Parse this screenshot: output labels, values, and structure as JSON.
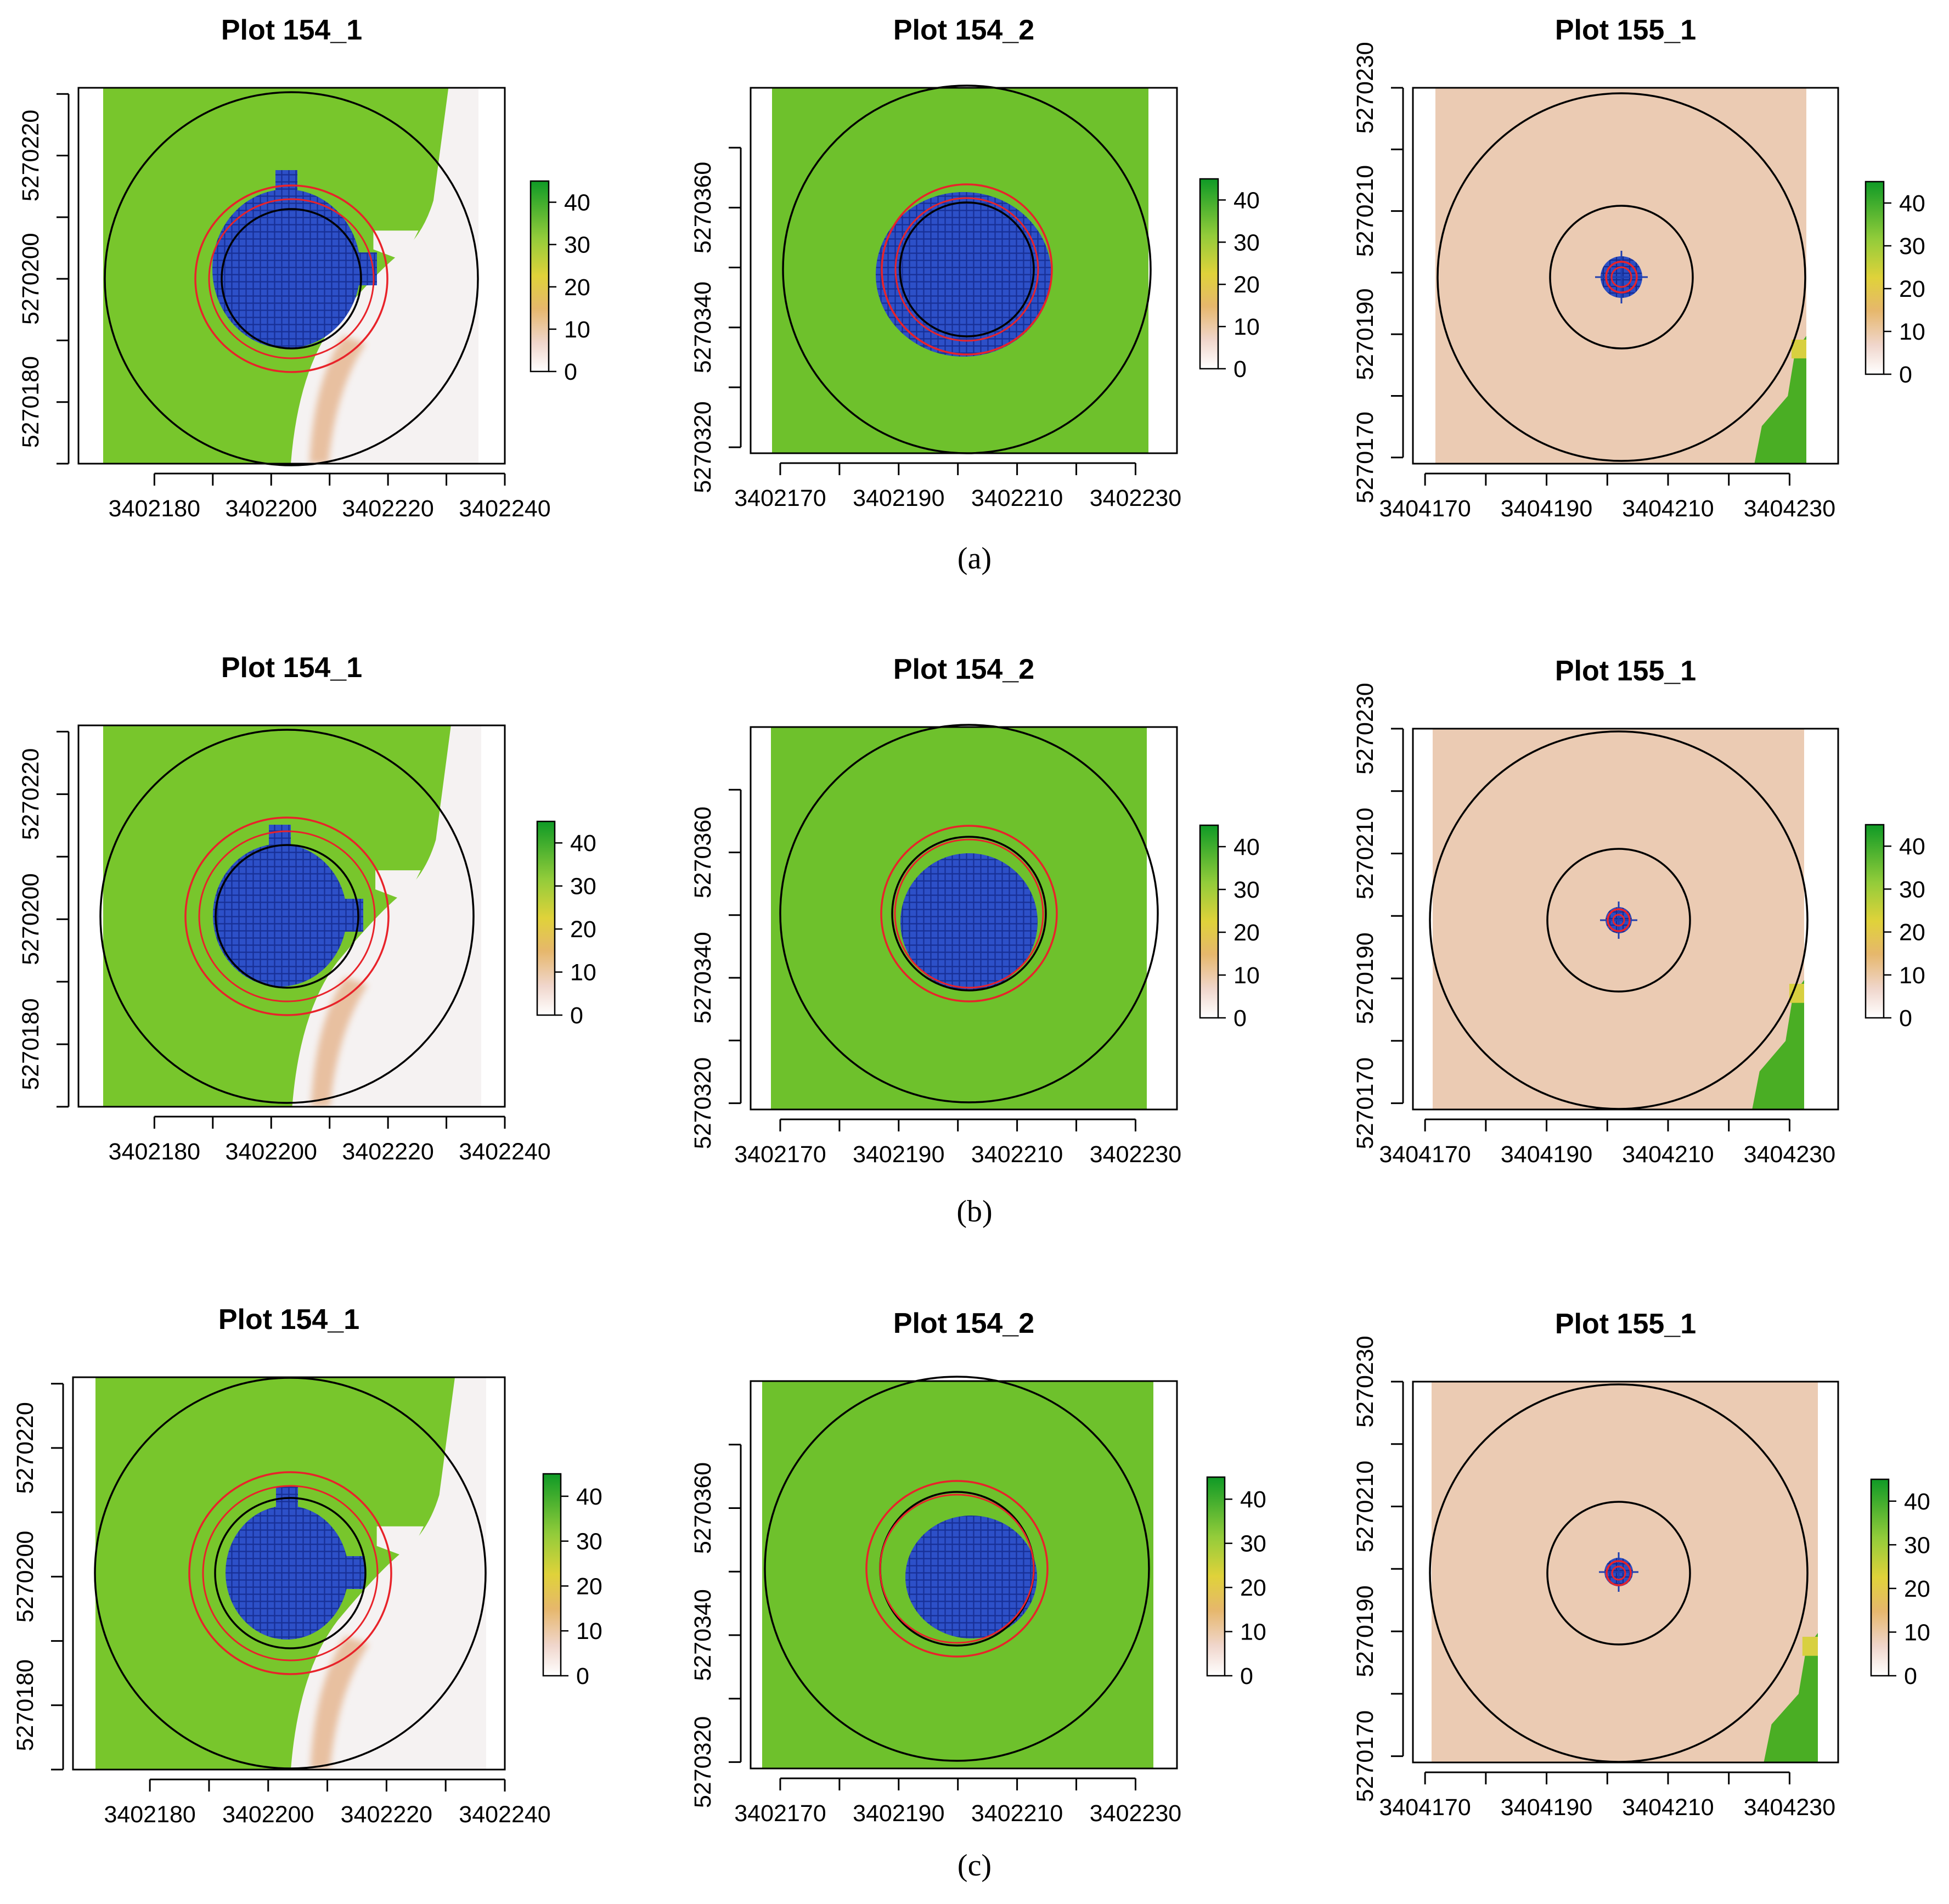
{
  "figure": {
    "row_captions": [
      "(a)",
      "(b)",
      "(c)"
    ]
  },
  "colors": {
    "green_dark": "#3aa41e",
    "green": "#78c62c",
    "yellow_green": "#b4d23a",
    "yellow": "#d8c644",
    "tan": "#e3b768",
    "salmon": "#e8c0a0",
    "pale": "#f1e9e6",
    "near_white": "#f5f2f2",
    "crosshair_blue": "#1f3fb0",
    "ring_red": "#e8232a",
    "ring_black": "#000000"
  },
  "colorbar": {
    "ticks": [
      "0",
      "10",
      "20",
      "30",
      "40"
    ],
    "range": [
      0,
      45
    ]
  },
  "chart_data": [
    {
      "type": "heatmap",
      "panel": "a1",
      "title": "Plot 154_1",
      "x_ticks": [
        "3402180",
        "3402200",
        "3402220",
        "3402240"
      ],
      "y_ticks": [
        "5270180",
        "5270200",
        "5270220"
      ],
      "xlim": [
        3402167,
        3402240
      ],
      "ylim": [
        5270170,
        5270231
      ]
    },
    {
      "type": "heatmap",
      "panel": "a2",
      "title": "Plot 154_2",
      "x_ticks": [
        "3402170",
        "3402190",
        "3402210",
        "3402230"
      ],
      "y_ticks": [
        "5270320",
        "5270340",
        "5270360"
      ],
      "xlim": [
        3402165,
        3402237
      ],
      "ylim": [
        5270319,
        5270380
      ]
    },
    {
      "type": "heatmap",
      "panel": "a3",
      "title": "Plot 155_1",
      "x_ticks": [
        "3404170",
        "3404190",
        "3404210",
        "3404230"
      ],
      "y_ticks": [
        "5270170",
        "5270190",
        "5270210",
        "5270230"
      ],
      "xlim": [
        3404168,
        3404238
      ],
      "ylim": [
        5270169,
        5270230
      ]
    },
    {
      "type": "heatmap",
      "panel": "b1",
      "title": "Plot 154_1",
      "x_ticks": [
        "3402180",
        "3402200",
        "3402220",
        "3402240"
      ],
      "y_ticks": [
        "5270180",
        "5270200",
        "5270220"
      ],
      "xlim": [
        3402167,
        3402240
      ],
      "ylim": [
        5270170,
        5270231
      ]
    },
    {
      "type": "heatmap",
      "panel": "b2",
      "title": "Plot 154_2",
      "x_ticks": [
        "3402170",
        "3402190",
        "3402210",
        "3402230"
      ],
      "y_ticks": [
        "5270320",
        "5270340",
        "5270360"
      ],
      "xlim": [
        3402165,
        3402237
      ],
      "ylim": [
        5270319,
        5270380
      ]
    },
    {
      "type": "heatmap",
      "panel": "b3",
      "title": "Plot 155_1",
      "x_ticks": [
        "3404170",
        "3404190",
        "3404210",
        "3404230"
      ],
      "y_ticks": [
        "5270170",
        "5270190",
        "5270210",
        "5270230"
      ],
      "xlim": [
        3404168,
        3404238
      ],
      "ylim": [
        5270169,
        5270230
      ]
    },
    {
      "type": "heatmap",
      "panel": "c1",
      "title": "Plot 154_1",
      "x_ticks": [
        "3402180",
        "3402200",
        "3402220",
        "3402240"
      ],
      "y_ticks": [
        "5270180",
        "5270200",
        "5270220"
      ],
      "xlim": [
        3402167,
        3402240
      ],
      "ylim": [
        5270170,
        5270231
      ]
    },
    {
      "type": "heatmap",
      "panel": "c2",
      "title": "Plot 154_2",
      "x_ticks": [
        "3402170",
        "3402190",
        "3402210",
        "3402230"
      ],
      "y_ticks": [
        "5270320",
        "5270340",
        "5270360"
      ],
      "xlim": [
        3402165,
        3402237
      ],
      "ylim": [
        5270319,
        5270380
      ]
    },
    {
      "type": "heatmap",
      "panel": "c3",
      "title": "Plot 155_1",
      "x_ticks": [
        "3404170",
        "3404190",
        "3404210",
        "3404230"
      ],
      "y_ticks": [
        "5270170",
        "5270190",
        "5270210",
        "5270230"
      ],
      "xlim": [
        3404168,
        3404238
      ],
      "ylim": [
        5270169,
        5270230
      ]
    }
  ]
}
